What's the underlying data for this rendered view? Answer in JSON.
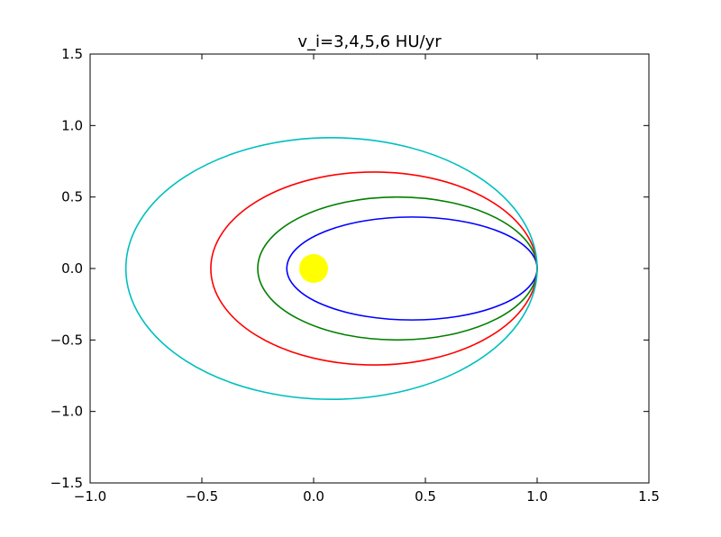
{
  "chart_data": {
    "type": "line",
    "title": "v_i=3,4,5,6 HU/yr",
    "xlabel": "",
    "ylabel": "",
    "xlim": [
      -1.0,
      1.5
    ],
    "ylim": [
      -1.5,
      1.5
    ],
    "x_ticks": [
      -1.0,
      -0.5,
      0.0,
      0.5,
      1.0,
      1.5
    ],
    "x_tick_labels": [
      "−1.0",
      "−0.5",
      "0.0",
      "0.5",
      "1.0",
      "1.5"
    ],
    "y_ticks": [
      -1.5,
      -1.0,
      -0.5,
      0.0,
      0.5,
      1.0,
      1.5
    ],
    "y_tick_labels": [
      "−1.5",
      "−1.0",
      "−0.5",
      "0.0",
      "0.5",
      "1.0",
      "1.5"
    ],
    "grid": false,
    "sun": {
      "x": 0.0,
      "y": 0.0,
      "color": "#ffff00"
    },
    "series": [
      {
        "color": "#0000ff",
        "center_x": 0.44,
        "center_y": 0.0,
        "semi_major": 0.56,
        "semi_minor": 0.36
      },
      {
        "color": "#008000",
        "center_x": 0.375,
        "center_y": 0.0,
        "semi_major": 0.625,
        "semi_minor": 0.5
      },
      {
        "color": "#ff0000",
        "center_x": 0.27,
        "center_y": 0.0,
        "semi_major": 0.73,
        "semi_minor": 0.675
      },
      {
        "color": "#00bfbf",
        "center_x": 0.08,
        "center_y": 0.0,
        "semi_major": 0.92,
        "semi_minor": 0.915
      }
    ]
  }
}
